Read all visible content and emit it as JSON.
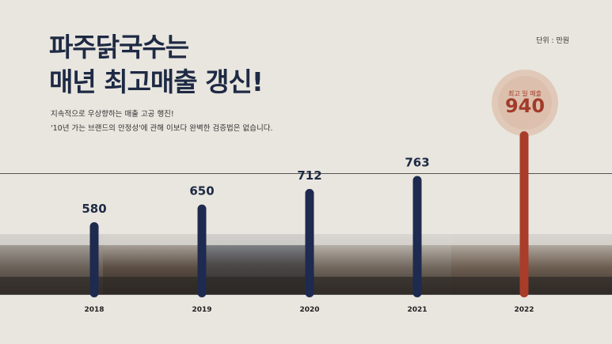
{
  "header": {
    "title_line1": "파주닭국수는",
    "title_line2": "매년 최고매출 갱신!",
    "desc_line1": "지속적으로 우상향하는 매출 고공 행진!",
    "desc_line2": "'10년 가는 브랜드의 안정성'에 관해 이보다 완벽한 검증법은 없습니다.",
    "unit": "단위 : 만원"
  },
  "highlight": {
    "label": "최고 일 매출",
    "value": "940"
  },
  "colors": {
    "bar": "#1e2a4f",
    "highlight_bar": "#a93d2a",
    "background": "#e9e6df"
  },
  "chart_data": {
    "type": "bar",
    "categories": [
      "2018",
      "2019",
      "2020",
      "2021",
      "2022"
    ],
    "values": [
      580,
      650,
      712,
      763,
      940
    ],
    "value_labels": [
      "580",
      "650",
      "712",
      "763",
      ""
    ],
    "highlight_index": 4,
    "ylim": [
      0,
      1000
    ],
    "xlabel": "",
    "ylabel": ""
  }
}
